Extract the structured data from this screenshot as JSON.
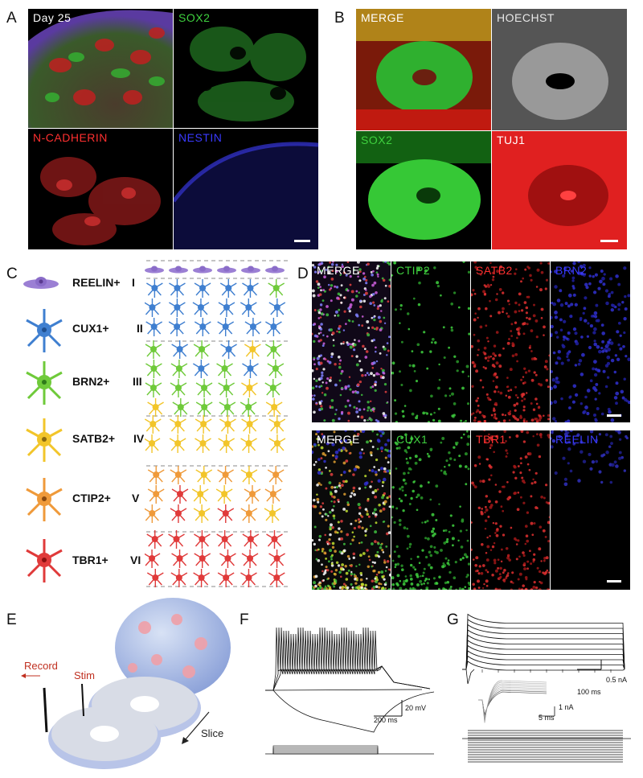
{
  "panels": {
    "A": {
      "letter": "A",
      "tiles": {
        "t1": "Day 25",
        "t2": "SOX2",
        "t3": "N-CADHERIN",
        "t4": "NESTIN"
      }
    },
    "B": {
      "letter": "B",
      "tiles": {
        "t1": "MERGE",
        "t2": "HOECHST",
        "t3": "SOX2",
        "t4": "TUJ1"
      }
    },
    "C": {
      "letter": "C",
      "rows": [
        {
          "marker": "REELIN+",
          "layer": "I",
          "color": "#9b7fd4"
        },
        {
          "marker": "CUX1+",
          "layer": "II",
          "color": "#3f7fd0"
        },
        {
          "marker": "BRN2+",
          "layer": "III",
          "color": "#6fca3a"
        },
        {
          "marker": "SATB2+",
          "layer": "IV",
          "color": "#f2c52a"
        },
        {
          "marker": "CTIP2+",
          "layer": "V",
          "color": "#ef9a3a"
        },
        {
          "marker": "TBR1+",
          "layer": "VI",
          "color": "#e03a3a"
        }
      ]
    },
    "D": {
      "letter": "D",
      "top": {
        "t1": "MERGE",
        "t2": "CTIP2",
        "t3": "SATB2",
        "t4": "BRN2"
      },
      "bottom": {
        "t1": "MERGE",
        "t2": "CUX1",
        "t3": "TBR1",
        "t4": "REELIN"
      }
    },
    "E": {
      "letter": "E",
      "record": "Record",
      "stim": "Stim",
      "slice": "Slice"
    },
    "F": {
      "letter": "F",
      "scale_v": "20 mV",
      "scale_t": "200 ms"
    },
    "G": {
      "letter": "G",
      "scale_i": "0.5 nA",
      "scale_t": "100 ms",
      "inset_i": "1 nA",
      "inset_t": "5 ms"
    }
  },
  "colors": {
    "green": "#3fd13f",
    "red": "#ff3030",
    "blue": "#3a3aff",
    "white": "#ffffff",
    "grey": "#cfcfcf"
  }
}
